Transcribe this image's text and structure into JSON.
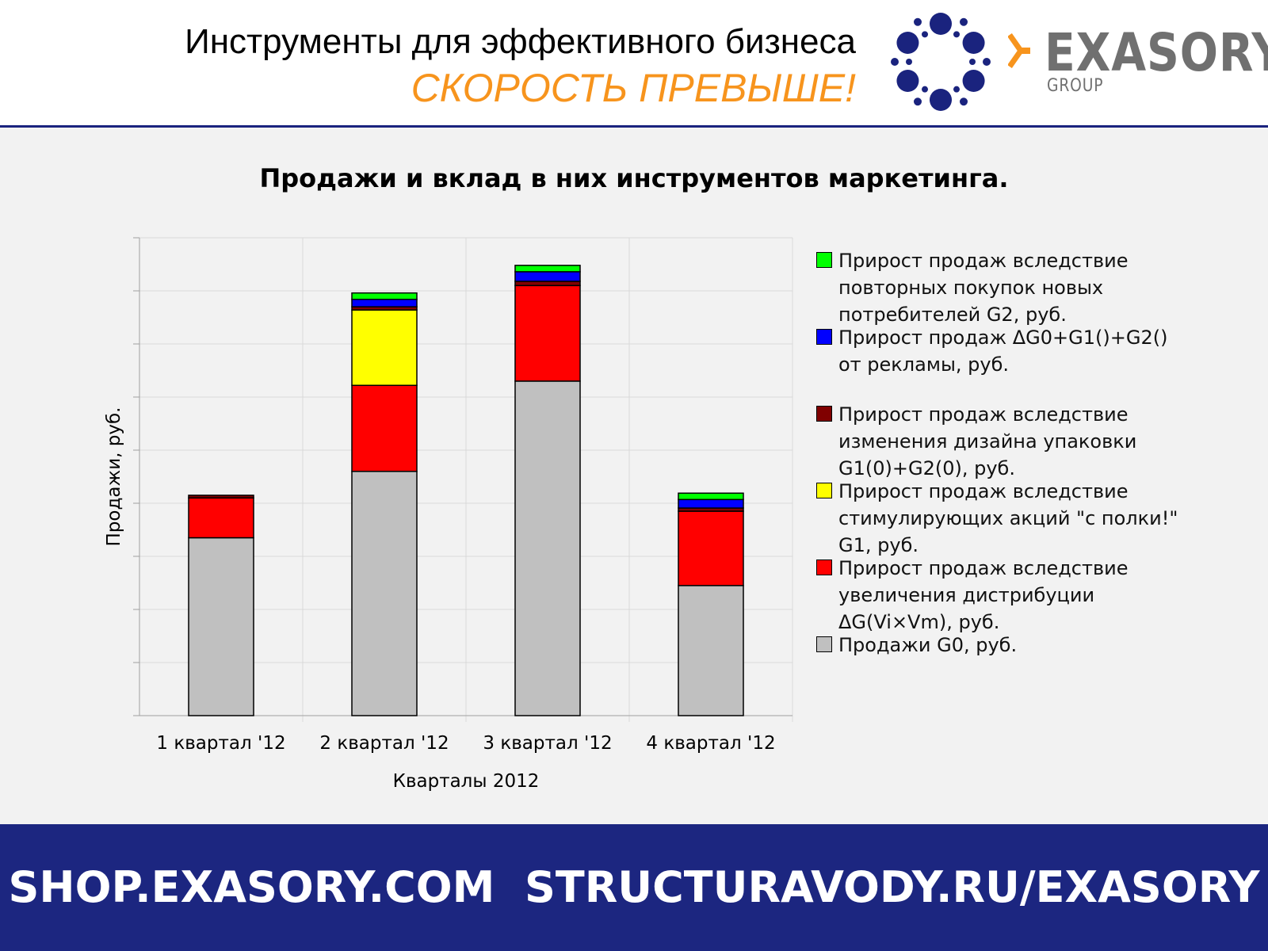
{
  "header": {
    "title": "Инструменты для эффективного бизнеса",
    "slogan": "СКОРОСТЬ ПРЕВЫШЕ!",
    "brand_name": "EXASORY",
    "brand_sub": "GROUP",
    "logo_icon": "dotted-ring-logo-icon",
    "arrow_icon": "orange-arrow-icon",
    "colors": {
      "slogan": "#f7941d",
      "logo_dots": "#1a237e",
      "brand_text": "#707070",
      "divider": "#1a237e"
    }
  },
  "chart_data": {
    "type": "bar",
    "stacked": true,
    "title": "Продажи и вклад в них инструментов маркетинга.",
    "xlabel": "Кварталы 2012",
    "ylabel": "Продажи, руб.",
    "categories": [
      "1 квартал '12",
      "2 квартал '12",
      "3 квартал '12",
      "4 квартал '12"
    ],
    "ylim": [
      0,
      9
    ],
    "y_tick_labels_shown": false,
    "grid": true,
    "legend_position": "right",
    "series": [
      {
        "name": "Продажи G0, руб.",
        "color": "#c0c0c0",
        "values": [
          3.35,
          4.6,
          6.3,
          2.45
        ]
      },
      {
        "name": "Прирост продаж вследствие увеличения дистрибуции ΔG(Vi×Vm), руб.",
        "color": "#ff0000",
        "values": [
          0.75,
          1.62,
          1.8,
          1.4
        ]
      },
      {
        "name": "Прирост продаж вследствие стимулирующих акций \"с полки!\" G1, руб.",
        "color": "#ffff00",
        "values": [
          0,
          1.42,
          0,
          0
        ]
      },
      {
        "name": "Прирост продаж вследствие изменения дизайна упаковки G1(0)+G2(0), руб.",
        "color": "#800000",
        "values": [
          0.05,
          0.06,
          0.08,
          0.06
        ]
      },
      {
        "name": "Прирост продаж ΔG0+G1()+G2() от рекламы, руб.",
        "color": "#0000ff",
        "values": [
          0,
          0.14,
          0.18,
          0.16
        ]
      },
      {
        "name": "Прирост продаж вследствие повторных покупок новых потребителей G2, руб.",
        "color": "#00ff00",
        "values": [
          0,
          0.12,
          0.12,
          0.12
        ]
      }
    ]
  },
  "footer": {
    "text": "SHOP.EXASORY.COM  STRUCTURAVODY.RU/EXASORY"
  }
}
